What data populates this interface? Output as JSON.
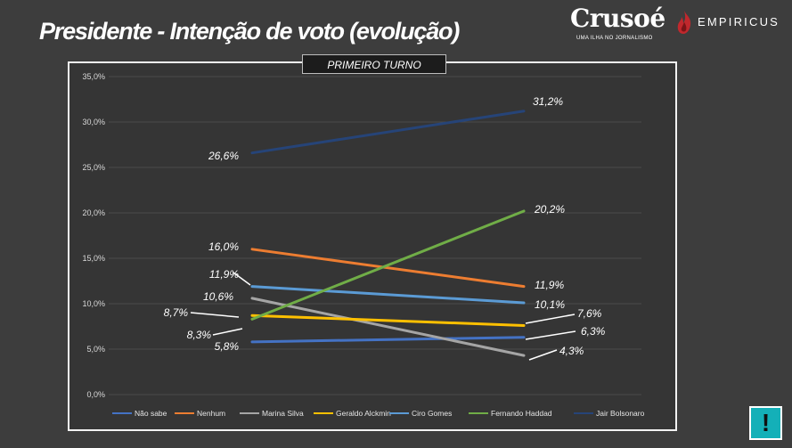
{
  "header": {
    "title": "Presidente - Intenção de voto (evolução)"
  },
  "logos": {
    "crusoe": "Crusoé",
    "crusoe_tagline": "UMA ILHA NO JORNALISMO",
    "empiricus": "EMPIRICUS"
  },
  "badge": {
    "symbol": "!"
  },
  "chart_data": {
    "type": "line",
    "title": "PRIMEIRO TURNO",
    "xlabel": "",
    "ylabel": "",
    "ylim": [
      0,
      35
    ],
    "yticks": [
      "0,0%",
      "5,0%",
      "10,0%",
      "15,0%",
      "20,0%",
      "25,0%",
      "30,0%",
      "35,0%"
    ],
    "grid": true,
    "legend_position": "bottom",
    "x": [
      1,
      2
    ],
    "series": [
      {
        "name": "Não sabe",
        "values": [
          5.8,
          6.3
        ],
        "labels": [
          "5,8%",
          "6,3%"
        ],
        "color": "#4472c4"
      },
      {
        "name": "Nenhum",
        "values": [
          16.0,
          11.9
        ],
        "labels": [
          "16,0%",
          "11,9%"
        ],
        "color": "#ed7d31"
      },
      {
        "name": "Marina Silva",
        "values": [
          10.6,
          4.3
        ],
        "labels": [
          "10,6%",
          "4,3%"
        ],
        "color": "#a5a5a5"
      },
      {
        "name": "Geraldo Alckmin",
        "values": [
          8.7,
          7.6
        ],
        "labels": [
          "8,7%",
          "7,6%"
        ],
        "color": "#ffc000"
      },
      {
        "name": "Ciro Gomes",
        "values": [
          11.9,
          10.1
        ],
        "labels": [
          "11,9%",
          "10,1%"
        ],
        "color": "#5b9bd5"
      },
      {
        "name": "Fernando Haddad",
        "values": [
          8.3,
          20.2
        ],
        "labels": [
          "8,3%",
          "20,2%"
        ],
        "color": "#70ad47"
      },
      {
        "name": "Jair Bolsonaro",
        "values": [
          26.6,
          31.2
        ],
        "labels": [
          "26,6%",
          "31,2%"
        ],
        "color": "#264478"
      }
    ]
  }
}
